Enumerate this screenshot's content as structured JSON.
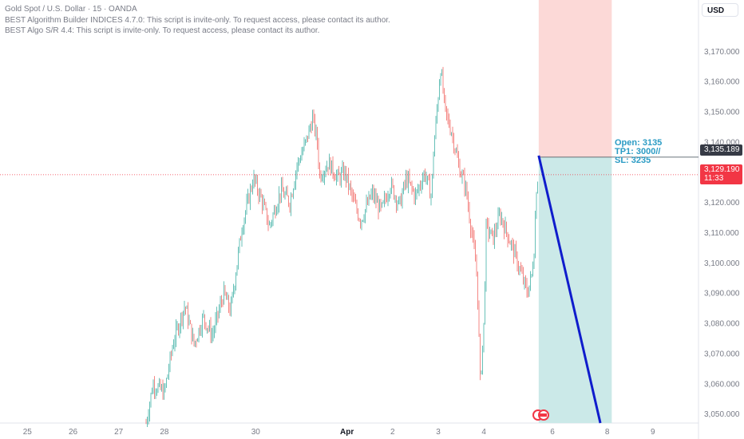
{
  "header": {
    "symbol_line": "Gold Spot / U.S. Dollar · 15 · OANDA",
    "indicator_1": "BEST Algorithm Builder INDICES 4.7.0: This script is invite-only. To request access, please contact its author.",
    "indicator_2": "BEST Algo S/R 4.4: This script is invite-only. To request access, please contact its author."
  },
  "price_scale": {
    "currency": "USD",
    "entry_tag": "3,135.189",
    "last_price": "3,129.190",
    "countdown": "11:33"
  },
  "trade_annotation": {
    "open": "Open: 3135",
    "tp": "TP1: 3000//",
    "sl": "SL: 3235"
  },
  "chart_data": {
    "type": "candlestick",
    "title": "",
    "y_axis": {
      "ticks": [
        3050,
        3060,
        3070,
        3080,
        3090,
        3100,
        3110,
        3120,
        3130,
        3140,
        3150,
        3160,
        3170
      ],
      "tick_labels": [
        "3,050.000",
        "3,060.000",
        "3,070.000",
        "3,080.000",
        "3,090.000",
        "3,100.000",
        "3,110.000",
        "3,120.000",
        "3,130.000",
        "3,140.000",
        "3,150.000",
        "3,160.000",
        "3,170.000"
      ],
      "range": [
        3047,
        3187
      ]
    },
    "x_axis": {
      "labels": [
        "25",
        "26",
        "27",
        "28",
        "30",
        "Apr",
        "2",
        "3",
        "4",
        "6",
        "8",
        "9"
      ],
      "label_days": [
        -7,
        -6,
        -5,
        -4,
        -2,
        0,
        1,
        2,
        3,
        4.5,
        5.7,
        6.7
      ],
      "range_days": [
        -7.6,
        7.7
      ]
    },
    "price_path": [
      [
        -4.4,
        3047
      ],
      [
        -4.25,
        3060
      ],
      [
        -4.0,
        3057
      ],
      [
        -3.8,
        3074
      ],
      [
        -3.55,
        3086
      ],
      [
        -3.35,
        3073
      ],
      [
        -3.15,
        3082
      ],
      [
        -2.95,
        3076
      ],
      [
        -2.7,
        3090
      ],
      [
        -2.55,
        3084
      ],
      [
        -2.3,
        3112
      ],
      [
        -2.05,
        3128
      ],
      [
        -1.85,
        3120
      ],
      [
        -1.7,
        3112
      ],
      [
        -1.45,
        3124
      ],
      [
        -1.25,
        3120
      ],
      [
        -1.1,
        3132
      ],
      [
        -0.9,
        3140
      ],
      [
        -0.75,
        3148
      ],
      [
        -0.65,
        3140
      ],
      [
        -0.6,
        3129
      ],
      [
        -0.4,
        3133
      ],
      [
        -0.2,
        3128
      ],
      [
        -0.05,
        3130
      ],
      [
        0.15,
        3120
      ],
      [
        0.3,
        3114
      ],
      [
        0.55,
        3123
      ],
      [
        0.75,
        3117
      ],
      [
        0.95,
        3126
      ],
      [
        1.15,
        3119
      ],
      [
        1.3,
        3128
      ],
      [
        1.5,
        3122
      ],
      [
        1.7,
        3130
      ],
      [
        1.85,
        3122
      ],
      [
        1.9,
        3138
      ],
      [
        1.97,
        3150
      ],
      [
        2.05,
        3165
      ],
      [
        2.15,
        3150
      ],
      [
        2.3,
        3143
      ],
      [
        2.45,
        3132
      ],
      [
        2.6,
        3125
      ],
      [
        2.75,
        3108
      ],
      [
        2.85,
        3096
      ],
      [
        2.92,
        3060
      ],
      [
        3.0,
        3080
      ],
      [
        3.05,
        3112
      ],
      [
        3.2,
        3108
      ],
      [
        3.35,
        3116
      ],
      [
        3.5,
        3110
      ],
      [
        3.65,
        3104
      ],
      [
        3.8,
        3097
      ],
      [
        3.95,
        3090
      ],
      [
        4.05,
        3096
      ],
      [
        4.1,
        3105
      ],
      [
        4.15,
        3125
      ],
      [
        4.2,
        3130
      ]
    ],
    "position": {
      "type": "short",
      "entry": 3135,
      "stop_loss": 3235,
      "take_profit": 3000,
      "start_day": 4.2,
      "end_day": 5.8
    },
    "projection_line": {
      "from": [
        4.2,
        3135.5
      ],
      "to": [
        5.55,
        3047
      ]
    },
    "last_price_line": 3129.19,
    "colors": {
      "up": "#26a69a",
      "down": "#ef5350",
      "stop_zone": "#fcd9d7",
      "target_zone": "#cbe9e8",
      "projection": "#0f1ccc",
      "last_price": "#f23645",
      "entry_line": "#37474f"
    }
  }
}
